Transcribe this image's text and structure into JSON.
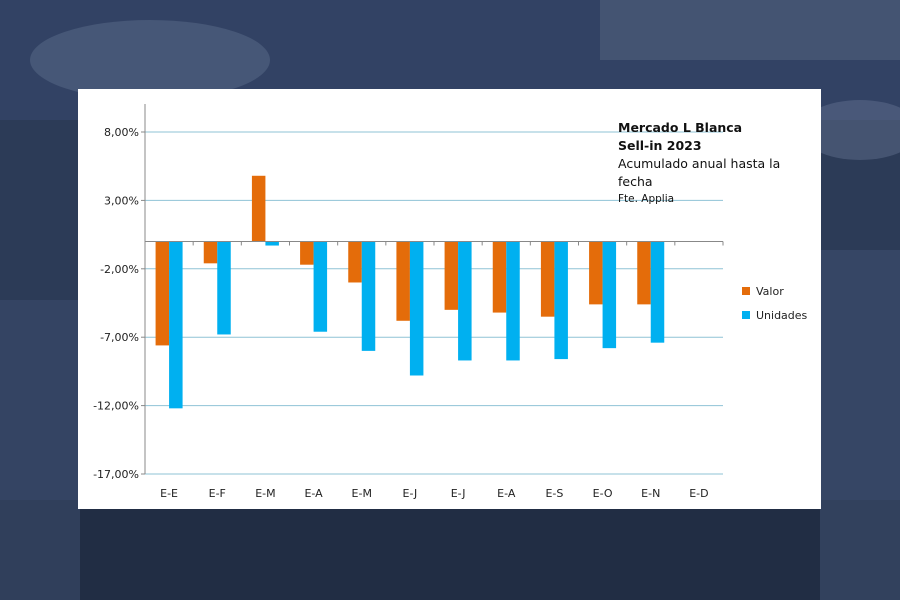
{
  "chart_data": {
    "type": "bar",
    "title_lines": [
      "Mercado L Blanca",
      "Sell-in 2023"
    ],
    "subtitle_lines": [
      "Acumulado anual hasta la",
      "fecha"
    ],
    "source": "Fte. Applia",
    "categories": [
      "E-E",
      "E-F",
      "E-M",
      "E-A",
      "E-M",
      "E-J",
      "E-J",
      "E-A",
      "E-S",
      "E-O",
      "E-N",
      "E-D"
    ],
    "series": [
      {
        "name": "Valor",
        "color": "#e46c0a",
        "values": [
          -7.6,
          -1.6,
          4.8,
          -1.7,
          -3.0,
          -5.8,
          -5.0,
          -5.2,
          -5.5,
          -4.6,
          -4.6,
          null
        ]
      },
      {
        "name": "Unidades",
        "color": "#00b0f0",
        "values": [
          -12.2,
          -6.8,
          -0.3,
          -6.6,
          -8.0,
          -9.8,
          -8.7,
          -8.7,
          -8.6,
          -7.8,
          -7.4,
          null
        ]
      }
    ],
    "yticks": [
      "8,00%",
      "3,00%",
      "-2,00%",
      "-7,00%",
      "-12,00%",
      "-17,00%"
    ],
    "ytick_values": [
      8,
      3,
      -2,
      -7,
      -12,
      -17
    ],
    "ylim": [
      -17,
      8
    ],
    "grid": true,
    "legend_position": "right"
  }
}
